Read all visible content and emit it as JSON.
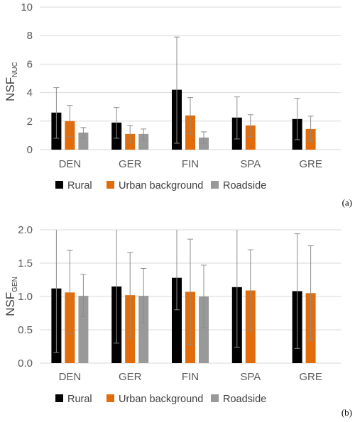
{
  "chart_data": [
    {
      "type": "bar",
      "panel_label": "(a)",
      "ylabel_main": "NSF",
      "ylabel_sub": "NUC",
      "categories": [
        "DEN",
        "GER",
        "FIN",
        "SPA",
        "GRE"
      ],
      "ylim": [
        0,
        10
      ],
      "yticks": [
        "0",
        "2",
        "4",
        "6",
        "8",
        "10"
      ],
      "ytick_values": [
        0,
        2,
        4,
        6,
        8,
        10
      ],
      "grid": true,
      "legend_position": "bottom",
      "series": [
        {
          "name": "Rural",
          "color": "#000000",
          "values": [
            2.6,
            1.9,
            4.2,
            2.25,
            2.15
          ],
          "err_low": [
            0.8,
            0.8,
            0.45,
            0.75,
            0.7
          ],
          "err_high": [
            4.35,
            2.95,
            7.9,
            3.7,
            3.6
          ]
        },
        {
          "name": "Urban background",
          "color": "#E36C0A",
          "values": [
            2.0,
            1.1,
            2.4,
            1.7,
            1.45
          ],
          "err_low": [
            0.9,
            0.5,
            1.1,
            0.9,
            0.6
          ],
          "err_high": [
            3.1,
            1.7,
            3.65,
            2.45,
            2.35
          ]
        },
        {
          "name": "Roadside",
          "color": "#999999",
          "values": [
            1.2,
            1.1,
            0.85,
            null,
            null
          ],
          "err_low": [
            0.8,
            0.7,
            0.45,
            null,
            null
          ],
          "err_high": [
            1.55,
            1.45,
            1.25,
            null,
            null
          ]
        }
      ]
    },
    {
      "type": "bar",
      "panel_label": "(b)",
      "ylabel_main": "NSF",
      "ylabel_sub": "GEN",
      "categories": [
        "DEN",
        "GER",
        "FIN",
        "SPA",
        "GRE"
      ],
      "ylim": [
        0,
        2
      ],
      "yticks": [
        "0.0",
        "0.5",
        "1.0",
        "1.5",
        "2.0"
      ],
      "ytick_values": [
        0,
        0.5,
        1.0,
        1.5,
        2.0
      ],
      "grid": true,
      "legend_position": "bottom",
      "series": [
        {
          "name": "Rural",
          "color": "#000000",
          "values": [
            1.12,
            1.15,
            1.28,
            1.14,
            1.08
          ],
          "err_low": [
            0.16,
            0.3,
            0.8,
            0.24,
            0.22
          ],
          "err_high": [
            2.0,
            2.0,
            2.0,
            2.0,
            1.94
          ]
        },
        {
          "name": "Urban background",
          "color": "#E36C0A",
          "values": [
            1.06,
            1.02,
            1.07,
            1.09,
            1.05
          ],
          "err_low": [
            0.44,
            0.38,
            0.28,
            0.49,
            0.34
          ],
          "err_high": [
            1.69,
            1.66,
            1.86,
            1.7,
            1.76
          ]
        },
        {
          "name": "Roadside",
          "color": "#999999",
          "values": [
            1.01,
            1.01,
            1.0,
            null,
            null
          ],
          "err_low": [
            0.7,
            0.6,
            0.53,
            null,
            null
          ],
          "err_high": [
            1.33,
            1.42,
            1.47,
            null,
            null
          ]
        }
      ]
    }
  ]
}
